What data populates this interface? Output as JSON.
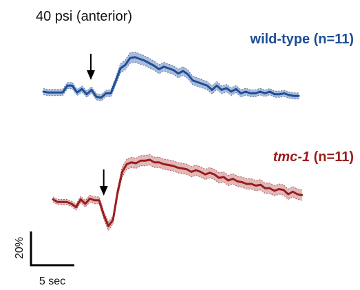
{
  "chart_data": [
    {
      "type": "line",
      "title": "40 psi (anterior)",
      "series": [
        {
          "name": "wild-type (n=11)",
          "name_parts": {
            "strain": "wild-type",
            "count": "(n=11)"
          },
          "color": "#1f4e96",
          "band_color": "#8fa6cc",
          "x": [
            0,
            1,
            2,
            3,
            4,
            5,
            6,
            7,
            8,
            9,
            10,
            11,
            12,
            13,
            14,
            15,
            16,
            17,
            18,
            19,
            20,
            21,
            22,
            23,
            24,
            25,
            26,
            27,
            28,
            29,
            30,
            31,
            32,
            33,
            34,
            35,
            36,
            37,
            38,
            39,
            40,
            41,
            42,
            43,
            44,
            45,
            46,
            47,
            48,
            49,
            50,
            51,
            52,
            53
          ],
          "y": [
            2.0,
            1.5,
            1.5,
            1.5,
            1.5,
            5.5,
            5.5,
            1.5,
            3.5,
            0.5,
            3.0,
            -1.0,
            -1.5,
            1.0,
            1.0,
            8.0,
            15.5,
            17.5,
            21.5,
            22.0,
            21.0,
            20.0,
            18.5,
            17.0,
            15.0,
            16.5,
            15.5,
            14.5,
            12.5,
            14.0,
            12.0,
            8.5,
            7.5,
            6.5,
            5.5,
            3.0,
            5.5,
            3.0,
            4.0,
            2.0,
            3.5,
            1.0,
            2.0,
            1.0,
            1.0,
            2.0,
            1.0,
            2.0,
            0.5,
            0.5,
            1.0,
            0.0,
            -0.5,
            -0.5
          ],
          "sem": [
            1.8,
            1.8,
            1.8,
            1.8,
            1.8,
            1.8,
            1.8,
            1.8,
            1.8,
            1.8,
            1.8,
            1.8,
            1.8,
            1.8,
            2.0,
            2.2,
            2.6,
            2.8,
            3.0,
            3.0,
            3.0,
            2.8,
            2.8,
            2.7,
            2.6,
            2.6,
            2.5,
            2.5,
            2.5,
            2.5,
            2.5,
            2.5,
            2.5,
            2.4,
            2.4,
            2.4,
            2.3,
            2.3,
            2.2,
            2.2,
            2.1,
            2.1,
            2.0,
            2.0,
            2.0,
            1.9,
            1.9,
            1.8,
            1.8,
            1.8,
            1.8,
            1.8,
            1.8,
            1.8
          ],
          "stimulus_x": 10
        },
        {
          "name": "tmc-1 (n=11)",
          "name_parts": {
            "strain": "tmc-1",
            "count": "(n=11)"
          },
          "color": "#9b1c1c",
          "band_color": "#d6a2a2",
          "x": [
            0,
            1,
            2,
            3,
            4,
            5,
            6,
            7,
            8,
            9,
            10,
            11,
            12,
            13,
            14,
            15,
            16,
            17,
            18,
            19,
            20,
            21,
            22,
            23,
            24,
            25,
            26,
            27,
            28,
            29,
            30,
            31,
            32,
            33,
            34,
            35,
            36,
            37,
            38,
            39,
            40,
            41,
            42,
            43,
            44,
            45,
            46,
            47,
            48,
            49,
            50,
            51,
            52,
            53,
            54
          ],
          "y": [
            1.0,
            -0.5,
            -0.5,
            -0.5,
            -1.5,
            -3.5,
            1.0,
            -1.5,
            1.5,
            0.5,
            0.5,
            -8.0,
            -14.5,
            -11.0,
            5.0,
            17.0,
            21.5,
            22.5,
            22.0,
            23.5,
            23.5,
            24.0,
            22.5,
            22.5,
            21.5,
            21.0,
            20.5,
            19.5,
            19.0,
            18.5,
            17.0,
            18.0,
            17.0,
            15.5,
            16.5,
            15.5,
            13.5,
            14.0,
            12.0,
            13.0,
            11.5,
            11.0,
            10.0,
            10.0,
            9.0,
            9.5,
            7.5,
            7.5,
            6.0,
            7.0,
            6.5,
            4.0,
            5.5,
            4.0,
            3.5
          ],
          "sem": [
            1.5,
            1.5,
            1.5,
            1.5,
            1.6,
            1.7,
            1.8,
            1.9,
            2.0,
            2.0,
            2.0,
            2.2,
            2.5,
            2.3,
            2.5,
            3.0,
            3.0,
            3.0,
            3.0,
            3.0,
            3.0,
            3.0,
            3.0,
            3.0,
            3.0,
            3.0,
            3.0,
            3.0,
            3.0,
            3.0,
            3.0,
            3.0,
            3.0,
            3.0,
            3.0,
            3.0,
            3.0,
            3.0,
            3.0,
            3.0,
            3.0,
            3.0,
            3.0,
            3.0,
            3.0,
            3.0,
            3.0,
            3.0,
            3.0,
            3.0,
            3.0,
            3.0,
            3.0,
            3.0,
            3.0
          ],
          "stimulus_x": 11
        }
      ],
      "scale_bar": {
        "y_label": "20%",
        "y_value": 20,
        "x_label": "5 sec",
        "x_value": 5
      },
      "ylim": [
        -18,
        27
      ],
      "grid": false,
      "legend": "series labels above each trace, right-aligned"
    }
  ]
}
